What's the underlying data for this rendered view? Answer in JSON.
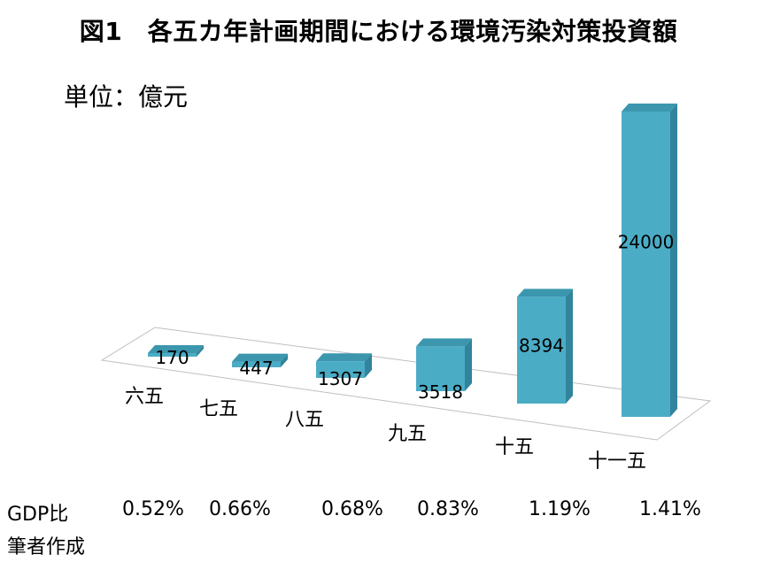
{
  "title": "図1　各五カ年計画期間における環境汚染対策投資額",
  "unit_label": "単位：億元",
  "chart_data": {
    "type": "bar",
    "title": "図1　各五カ年計画期間における環境汚染対策投資額",
    "ylabel": "単位：億元",
    "categories": [
      "六五",
      "七五",
      "八五",
      "九五",
      "十五",
      "十一五"
    ],
    "values": [
      170,
      447,
      1307,
      3518,
      8394,
      24000
    ],
    "bar_color": "#4bacc6",
    "grid": false,
    "legend": "none"
  },
  "gdp": {
    "label": "GDP比",
    "values": [
      "0.52%",
      "0.66%",
      "0.68%",
      "0.83%",
      "1.19%",
      "1.41%"
    ]
  },
  "source_note": "筆者作成"
}
